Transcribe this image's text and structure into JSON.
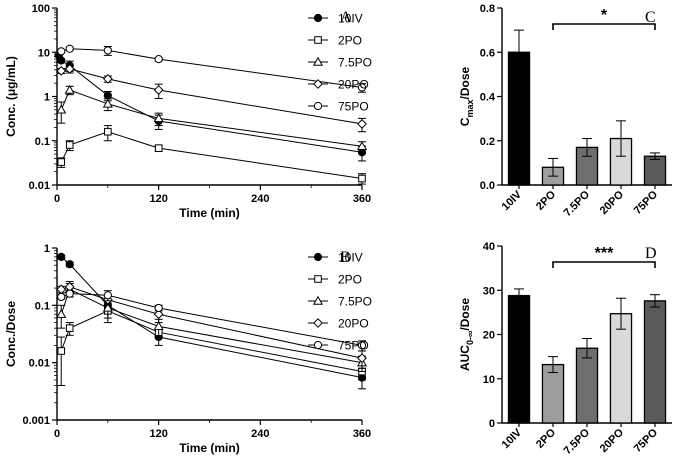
{
  "panels": {
    "A": {
      "letter": "A"
    },
    "B": {
      "letter": "B"
    },
    "C": {
      "letter": "C"
    },
    "D": {
      "letter": "D"
    }
  },
  "colors": {
    "10IV": "#000000",
    "2PO": "#9e9e9e",
    "7.5PO": "#6e6e6e",
    "20PO": "#d9d9d9",
    "75PO": "#5a5a5a"
  },
  "chart_data": [
    {
      "id": "A",
      "type": "line",
      "ylabel": "Conc. (μg/mL)",
      "xlabel": "Time (min)",
      "yscale": "log",
      "ylim": [
        0.01,
        100
      ],
      "xlim": [
        0,
        360
      ],
      "xticks": [
        0,
        120,
        240,
        360
      ],
      "yticks": [
        0.01,
        0.1,
        1,
        10,
        100
      ],
      "ytick_labels": [
        "0.01",
        "0.1",
        "1",
        "10",
        "100"
      ],
      "legend": "right",
      "series": [
        {
          "name": "10IV",
          "marker": "filled-circle",
          "x": [
            2,
            5,
            15,
            60,
            120,
            360
          ],
          "y": [
            8.5,
            6.5,
            5.0,
            1.05,
            0.28,
            0.055
          ],
          "err": [
            0.5,
            0.6,
            1.3,
            0.25,
            0.1,
            0.02
          ]
        },
        {
          "name": "2PO",
          "marker": "square",
          "x": [
            5,
            15,
            60,
            120,
            360
          ],
          "y": [
            0.033,
            0.08,
            0.16,
            0.068,
            0.014
          ],
          "err": [
            0.008,
            0.02,
            0.06,
            0.01,
            0.004
          ]
        },
        {
          "name": "7.5PO",
          "marker": "triangle",
          "x": [
            5,
            15,
            60,
            120,
            360
          ],
          "y": [
            0.5,
            1.4,
            0.68,
            0.32,
            0.075
          ],
          "err": [
            0.25,
            0.3,
            0.2,
            0.1,
            0.02
          ]
        },
        {
          "name": "20PO",
          "marker": "diamond",
          "x": [
            5,
            15,
            60,
            120,
            360
          ],
          "y": [
            3.8,
            4.2,
            2.5,
            1.4,
            0.24
          ],
          "err": [
            0.5,
            0.8,
            0.4,
            0.5,
            0.08
          ]
        },
        {
          "name": "75PO",
          "marker": "circle",
          "x": [
            5,
            15,
            60,
            120,
            360
          ],
          "y": [
            10.5,
            12,
            11,
            7,
            1.6
          ],
          "err": [
            0.6,
            1,
            2.5,
            0.6,
            0.35
          ]
        }
      ]
    },
    {
      "id": "B",
      "type": "line",
      "ylabel": "Conc./Dose",
      "xlabel": "Time (min)",
      "yscale": "log",
      "ylim": [
        0.001,
        1
      ],
      "xlim": [
        0,
        360
      ],
      "xticks": [
        0,
        120,
        240,
        360
      ],
      "yticks": [
        0.001,
        0.01,
        0.1,
        1
      ],
      "ytick_labels": [
        "0.001",
        "0.01",
        "0.1",
        "1"
      ],
      "legend": "right",
      "series": [
        {
          "name": "10IV",
          "marker": "filled-circle",
          "x": [
            5,
            15,
            60,
            120,
            360
          ],
          "y": [
            0.7,
            0.52,
            0.1,
            0.028,
            0.0055
          ],
          "err": [
            0.05,
            0.05,
            0.02,
            0.008,
            0.002
          ]
        },
        {
          "name": "2PO",
          "marker": "square",
          "x": [
            5,
            15,
            60,
            120,
            360
          ],
          "y": [
            0.016,
            0.04,
            0.08,
            0.034,
            0.007
          ],
          "err": [
            0.012,
            0.01,
            0.03,
            0.006,
            0.002
          ]
        },
        {
          "name": "7.5PO",
          "marker": "triangle",
          "x": [
            5,
            15,
            60,
            120,
            360
          ],
          "y": [
            0.07,
            0.19,
            0.09,
            0.043,
            0.01
          ],
          "err": [
            0.03,
            0.05,
            0.03,
            0.014,
            0.003
          ]
        },
        {
          "name": "20PO",
          "marker": "diamond",
          "x": [
            5,
            15,
            60,
            120,
            360
          ],
          "y": [
            0.19,
            0.21,
            0.125,
            0.07,
            0.012
          ],
          "err": [
            0.025,
            0.05,
            0.025,
            0.02,
            0.004
          ]
        },
        {
          "name": "75PO",
          "marker": "circle",
          "x": [
            5,
            15,
            60,
            120,
            360
          ],
          "y": [
            0.14,
            0.16,
            0.15,
            0.09,
            0.02
          ],
          "err": [
            0.01,
            0.02,
            0.03,
            0.01,
            0.004
          ]
        }
      ]
    },
    {
      "id": "C",
      "type": "bar",
      "ylabel_main": "C",
      "ylabel_sub": "max",
      "ylabel_rest": "/Dose",
      "categories": [
        "10IV",
        "2PO",
        "7.5PO",
        "20PO",
        "75PO"
      ],
      "values": [
        0.6,
        0.08,
        0.17,
        0.21,
        0.13
      ],
      "err": [
        0.1,
        0.04,
        0.04,
        0.08,
        0.015
      ],
      "ylim": [
        0,
        0.8
      ],
      "yticks": [
        0,
        0.2,
        0.4,
        0.6,
        0.8
      ],
      "ytick_labels": [
        "0.0",
        "0.2",
        "0.4",
        "0.6",
        "0.8"
      ],
      "significance": {
        "from": "2PO",
        "to": "75PO",
        "label": "*"
      }
    },
    {
      "id": "D",
      "type": "bar",
      "ylabel_main": "AUC",
      "ylabel_sub": "0-∞",
      "ylabel_rest": "/Dose",
      "categories": [
        "10IV",
        "2PO",
        "7.5PO",
        "20PO",
        "75PO"
      ],
      "values": [
        28.8,
        13.2,
        16.9,
        24.7,
        27.6
      ],
      "err": [
        1.5,
        1.8,
        2.2,
        3.5,
        1.4
      ],
      "ylim": [
        0,
        40
      ],
      "yticks": [
        0,
        10,
        20,
        30,
        40
      ],
      "ytick_labels": [
        "0",
        "10",
        "20",
        "30",
        "40"
      ],
      "significance": {
        "from": "2PO",
        "to": "75PO",
        "label": "***"
      }
    }
  ]
}
